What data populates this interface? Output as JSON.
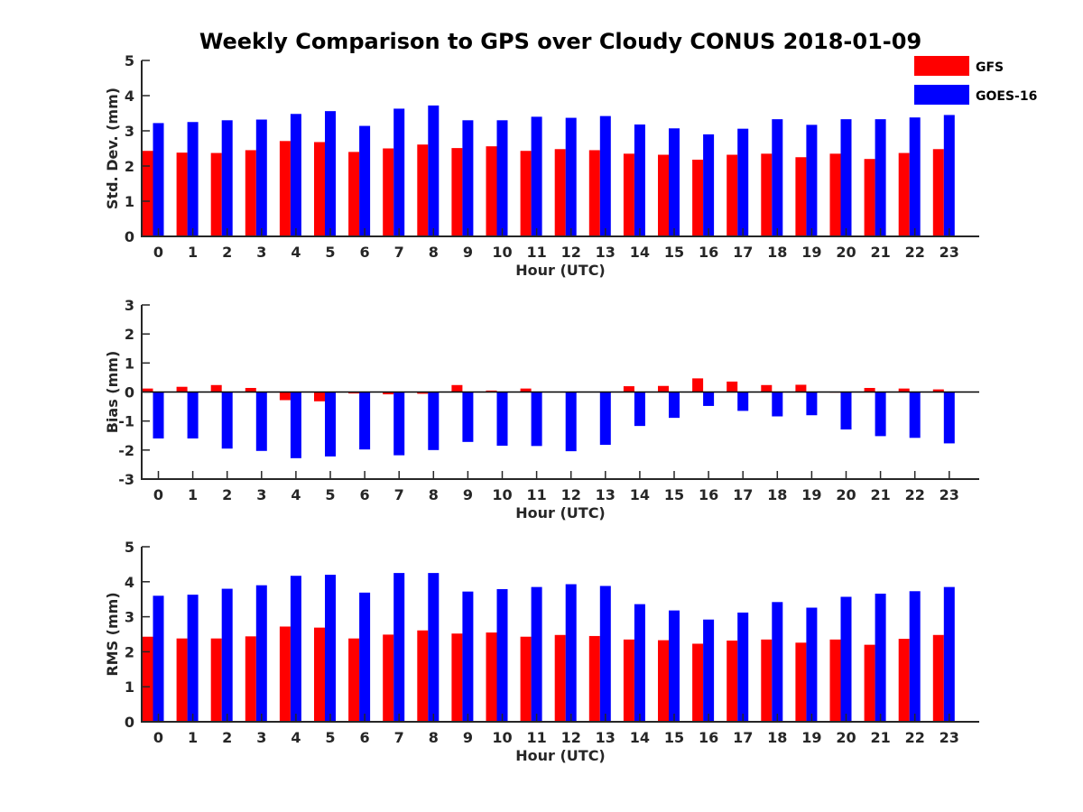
{
  "title": "Weekly Comparison to GPS over Cloudy CONUS 2018-01-09",
  "legend": [
    {
      "name": "GFS",
      "color": "#ff0000"
    },
    {
      "name": "GOES-16",
      "color": "#0000ff"
    }
  ],
  "chart_data": [
    {
      "type": "bar",
      "ylabel": "Std. Dev. (mm)",
      "xlabel": "Hour (UTC)",
      "ylim": [
        0,
        5
      ],
      "yticks": [
        0,
        1,
        2,
        3,
        4,
        5
      ],
      "categories": [
        "0",
        "1",
        "2",
        "3",
        "4",
        "5",
        "6",
        "7",
        "8",
        "9",
        "10",
        "11",
        "12",
        "13",
        "14",
        "15",
        "16",
        "17",
        "18",
        "19",
        "20",
        "21",
        "22",
        "23"
      ],
      "series": [
        {
          "name": "GFS",
          "color": "#ff0000",
          "values": [
            2.43,
            2.38,
            2.37,
            2.45,
            2.71,
            2.68,
            2.4,
            2.5,
            2.61,
            2.51,
            2.56,
            2.43,
            2.48,
            2.45,
            2.35,
            2.32,
            2.18,
            2.32,
            2.35,
            2.25,
            2.35,
            2.2,
            2.37,
            2.48
          ]
        },
        {
          "name": "GOES-16",
          "color": "#0000ff",
          "values": [
            3.22,
            3.25,
            3.3,
            3.32,
            3.48,
            3.56,
            3.14,
            3.63,
            3.72,
            3.3,
            3.3,
            3.4,
            3.37,
            3.42,
            3.18,
            3.07,
            2.9,
            3.06,
            3.33,
            3.17,
            3.33,
            3.33,
            3.38,
            3.45
          ]
        }
      ]
    },
    {
      "type": "bar",
      "ylabel": "Bias (mm)",
      "xlabel": "Hour (UTC)",
      "ylim": [
        -3,
        3
      ],
      "yticks": [
        -3,
        -2,
        -1,
        0,
        1,
        2,
        3
      ],
      "categories": [
        "0",
        "1",
        "2",
        "3",
        "4",
        "5",
        "6",
        "7",
        "8",
        "9",
        "10",
        "11",
        "12",
        "13",
        "14",
        "15",
        "16",
        "17",
        "18",
        "19",
        "20",
        "21",
        "22",
        "23"
      ],
      "series": [
        {
          "name": "GFS",
          "color": "#ff0000",
          "values": [
            0.12,
            0.18,
            0.24,
            0.14,
            -0.28,
            -0.32,
            -0.05,
            -0.08,
            -0.06,
            0.24,
            0.05,
            0.12,
            0.0,
            0.0,
            0.2,
            0.21,
            0.47,
            0.36,
            0.24,
            0.25,
            -0.02,
            0.14,
            0.12,
            0.09
          ]
        },
        {
          "name": "GOES-16",
          "color": "#0000ff",
          "values": [
            -1.6,
            -1.6,
            -1.95,
            -2.03,
            -2.28,
            -2.22,
            -1.98,
            -2.18,
            -2.0,
            -1.72,
            -1.85,
            -1.86,
            -2.04,
            -1.82,
            -1.17,
            -0.89,
            -0.48,
            -0.65,
            -0.84,
            -0.8,
            -1.29,
            -1.52,
            -1.58,
            -1.77
          ]
        }
      ]
    },
    {
      "type": "bar",
      "ylabel": "RMS (mm)",
      "xlabel": "Hour (UTC)",
      "ylim": [
        0,
        5
      ],
      "yticks": [
        0,
        1,
        2,
        3,
        4,
        5
      ],
      "categories": [
        "0",
        "1",
        "2",
        "3",
        "4",
        "5",
        "6",
        "7",
        "8",
        "9",
        "10",
        "11",
        "12",
        "13",
        "14",
        "15",
        "16",
        "17",
        "18",
        "19",
        "20",
        "21",
        "22",
        "23"
      ],
      "series": [
        {
          "name": "GFS",
          "color": "#ff0000",
          "values": [
            2.43,
            2.38,
            2.38,
            2.44,
            2.72,
            2.69,
            2.38,
            2.49,
            2.61,
            2.52,
            2.55,
            2.43,
            2.48,
            2.45,
            2.35,
            2.33,
            2.23,
            2.32,
            2.35,
            2.26,
            2.35,
            2.2,
            2.37,
            2.48
          ]
        },
        {
          "name": "GOES-16",
          "color": "#0000ff",
          "values": [
            3.6,
            3.63,
            3.8,
            3.9,
            4.17,
            4.2,
            3.69,
            4.25,
            4.25,
            3.72,
            3.79,
            3.85,
            3.93,
            3.88,
            3.36,
            3.18,
            2.92,
            3.12,
            3.42,
            3.26,
            3.57,
            3.66,
            3.73,
            3.85
          ]
        }
      ]
    }
  ]
}
